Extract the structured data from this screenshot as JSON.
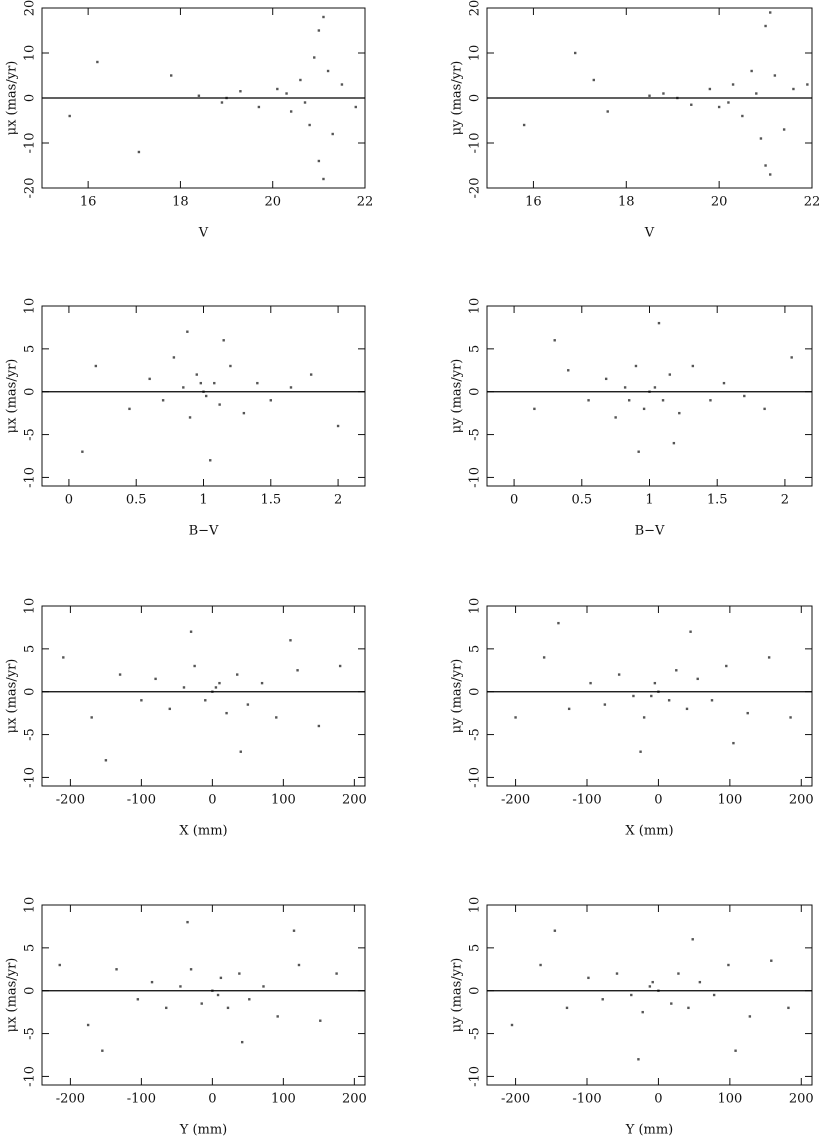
{
  "chart_data": [
    {
      "type": "scatter",
      "xlabel": "V",
      "ylabel": "μx (mas/yr)",
      "color": "#555555",
      "xlim": [
        15,
        22
      ],
      "xticks": [
        16,
        18,
        20,
        22
      ],
      "ylim": [
        -20,
        20
      ],
      "yticks": [
        -20,
        -10,
        0,
        10,
        20
      ],
      "hline": 0,
      "x": [
        16.2,
        17.1,
        17.8,
        18.4,
        18.9,
        19.3,
        19.7,
        20.1,
        20.4,
        20.6,
        20.8,
        20.9,
        21.0,
        21.0,
        21.1,
        21.1,
        21.2,
        21.3,
        21.5,
        21.8,
        15.6,
        19.0,
        20.3,
        20.7
      ],
      "values": [
        8,
        -12,
        5,
        0.5,
        -1,
        1.5,
        -2,
        2,
        -3,
        4,
        -6,
        9,
        15,
        -14,
        -18,
        18,
        6,
        -8,
        3,
        -2,
        -4,
        0,
        1,
        -1
      ]
    },
    {
      "type": "scatter",
      "xlabel": "V",
      "ylabel": "μy (mas/yr)",
      "color": "#555555",
      "xlim": [
        15,
        22
      ],
      "xticks": [
        16,
        18,
        20,
        22
      ],
      "ylim": [
        -20,
        20
      ],
      "yticks": [
        -20,
        -10,
        0,
        10,
        20
      ],
      "hline": 0,
      "x": [
        15.8,
        16.9,
        17.6,
        18.5,
        18.8,
        19.4,
        19.8,
        20.0,
        20.3,
        20.5,
        20.7,
        20.9,
        21.0,
        21.0,
        21.1,
        21.1,
        21.2,
        21.4,
        21.6,
        21.9,
        17.3,
        19.1,
        20.2,
        20.8
      ],
      "values": [
        -6,
        10,
        -3,
        0.5,
        1,
        -1.5,
        2,
        -2,
        3,
        -4,
        6,
        -9,
        16,
        -15,
        19,
        -17,
        5,
        -7,
        2,
        3,
        4,
        0,
        -1,
        1
      ]
    },
    {
      "type": "scatter",
      "xlabel": "B−V",
      "ylabel": "μx (mas/yr)",
      "color": "#555555",
      "xlim": [
        -0.2,
        2.2
      ],
      "xticks": [
        0,
        0.5,
        1,
        1.5,
        2
      ],
      "ylim": [
        -11,
        10
      ],
      "yticks": [
        -10,
        -5,
        0,
        5,
        10
      ],
      "hline": 0,
      "x": [
        0.2,
        0.45,
        0.6,
        0.7,
        0.78,
        0.85,
        0.9,
        0.95,
        1.0,
        1.02,
        1.08,
        1.12,
        1.2,
        1.3,
        1.4,
        1.5,
        1.65,
        1.8,
        2.0,
        0.1,
        0.88,
        1.05,
        1.15,
        0.98
      ],
      "values": [
        3,
        -2,
        1.5,
        -1,
        4,
        0.5,
        -3,
        2,
        0,
        -0.5,
        1,
        -1.5,
        3,
        -2.5,
        1,
        -1,
        0.5,
        2,
        -4,
        -7,
        7,
        -8,
        6,
        1
      ]
    },
    {
      "type": "scatter",
      "xlabel": "B−V",
      "ylabel": "μy (mas/yr)",
      "color": "#555555",
      "xlim": [
        -0.2,
        2.2
      ],
      "xticks": [
        0,
        0.5,
        1,
        1.5,
        2
      ],
      "ylim": [
        -11,
        10
      ],
      "yticks": [
        -10,
        -5,
        0,
        5,
        10
      ],
      "hline": 0,
      "x": [
        0.15,
        0.4,
        0.55,
        0.68,
        0.75,
        0.82,
        0.9,
        0.96,
        1.0,
        1.04,
        1.1,
        1.15,
        1.22,
        1.32,
        1.45,
        1.55,
        1.7,
        1.85,
        2.05,
        0.3,
        0.92,
        1.07,
        1.18,
        0.85
      ],
      "values": [
        -2,
        2.5,
        -1,
        1.5,
        -3,
        0.5,
        3,
        -2,
        0,
        0.5,
        -1,
        2,
        -2.5,
        3,
        -1,
        1,
        -0.5,
        -2,
        4,
        6,
        -7,
        8,
        -6,
        -1
      ]
    },
    {
      "type": "scatter",
      "xlabel": "X (mm)",
      "ylabel": "μx (mas/yr)",
      "color": "#555555",
      "xlim": [
        -240,
        215
      ],
      "xticks": [
        -200,
        -100,
        0,
        100,
        200
      ],
      "ylim": [
        -11,
        10
      ],
      "yticks": [
        -10,
        -5,
        0,
        5,
        10
      ],
      "hline": 0,
      "x": [
        -210,
        -170,
        -130,
        -100,
        -80,
        -60,
        -40,
        -25,
        -10,
        0,
        10,
        20,
        35,
        50,
        70,
        90,
        120,
        150,
        180,
        -150,
        -30,
        40,
        110,
        5
      ],
      "values": [
        4,
        -3,
        2,
        -1,
        1.5,
        -2,
        0.5,
        3,
        -1,
        0,
        1,
        -2.5,
        2,
        -1.5,
        1,
        -3,
        2.5,
        -4,
        3,
        -8,
        7,
        -7,
        6,
        0.5
      ]
    },
    {
      "type": "scatter",
      "xlabel": "X (mm)",
      "ylabel": "μy (mas/yr)",
      "color": "#555555",
      "xlim": [
        -240,
        215
      ],
      "xticks": [
        -200,
        -100,
        0,
        100,
        200
      ],
      "ylim": [
        -11,
        10
      ],
      "yticks": [
        -10,
        -5,
        0,
        5,
        10
      ],
      "hline": 0,
      "x": [
        -200,
        -160,
        -125,
        -95,
        -75,
        -55,
        -35,
        -20,
        -5,
        0,
        15,
        25,
        40,
        55,
        75,
        95,
        125,
        155,
        185,
        -140,
        -25,
        45,
        105,
        -10
      ],
      "values": [
        -3,
        4,
        -2,
        1,
        -1.5,
        2,
        -0.5,
        -3,
        1,
        0,
        -1,
        2.5,
        -2,
        1.5,
        -1,
        3,
        -2.5,
        4,
        -3,
        8,
        -7,
        7,
        -6,
        -0.5
      ]
    },
    {
      "type": "scatter",
      "xlabel": "Y (mm)",
      "ylabel": "μx (mas/yr)",
      "color": "#555555",
      "xlim": [
        -240,
        215
      ],
      "xticks": [
        -200,
        -100,
        0,
        100,
        200
      ],
      "ylim": [
        -11,
        10
      ],
      "yticks": [
        -10,
        -5,
        0,
        5,
        10
      ],
      "hline": 0,
      "x": [
        -215,
        -175,
        -135,
        -105,
        -85,
        -65,
        -45,
        -30,
        -15,
        0,
        12,
        22,
        38,
        52,
        72,
        92,
        122,
        152,
        175,
        -155,
        -35,
        42,
        115,
        8
      ],
      "values": [
        3,
        -4,
        2.5,
        -1,
        1,
        -2,
        0.5,
        2.5,
        -1.5,
        0,
        1.5,
        -2,
        2,
        -1,
        0.5,
        -3,
        3,
        -3.5,
        2,
        -7,
        8,
        -6,
        7,
        -0.5
      ]
    },
    {
      "type": "scatter",
      "xlabel": "Y (mm)",
      "ylabel": "μy (mas/yr)",
      "color": "#555555",
      "xlim": [
        -240,
        215
      ],
      "xticks": [
        -200,
        -100,
        0,
        100,
        200
      ],
      "ylim": [
        -11,
        10
      ],
      "yticks": [
        -10,
        -5,
        0,
        5,
        10
      ],
      "hline": 0,
      "x": [
        -205,
        -165,
        -128,
        -98,
        -78,
        -58,
        -38,
        -22,
        -8,
        0,
        18,
        28,
        42,
        58,
        78,
        98,
        128,
        158,
        182,
        -145,
        -28,
        48,
        108,
        -12
      ],
      "values": [
        -4,
        3,
        -2,
        1.5,
        -1,
        2,
        -0.5,
        -2.5,
        1,
        0,
        -1.5,
        2,
        -2,
        1,
        -0.5,
        3,
        -3,
        3.5,
        -2,
        7,
        -8,
        6,
        -7,
        0.5
      ]
    }
  ]
}
